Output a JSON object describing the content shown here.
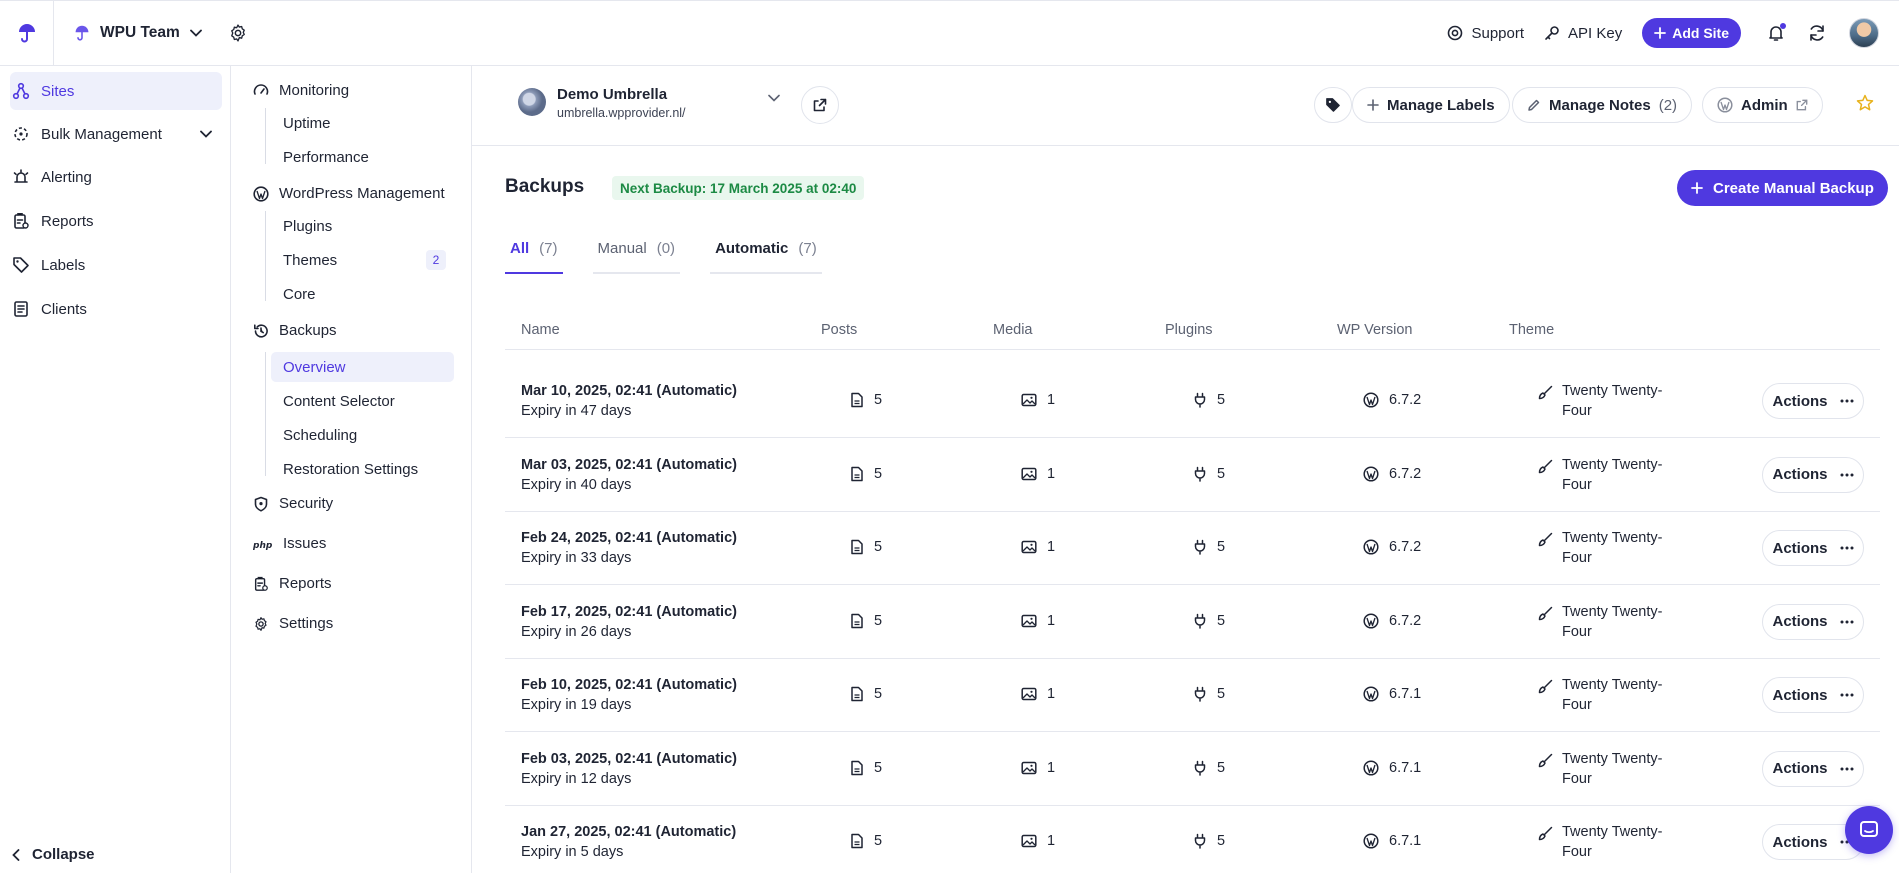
{
  "topbar": {
    "team_name": "WPU Team",
    "support": "Support",
    "api_key": "API Key",
    "add_site": "Add Site"
  },
  "sidebar": {
    "items": [
      {
        "label": "Sites",
        "icon": "sites-icon"
      },
      {
        "label": "Bulk Management",
        "icon": "bulk-icon"
      },
      {
        "label": "Alerting",
        "icon": "alert-icon"
      },
      {
        "label": "Reports",
        "icon": "reports-icon"
      },
      {
        "label": "Labels",
        "icon": "tag-icon"
      },
      {
        "label": "Clients",
        "icon": "clients-icon"
      }
    ],
    "collapse": "Collapse"
  },
  "subnav": {
    "monitoring": "Monitoring",
    "uptime": "Uptime",
    "performance": "Performance",
    "wp_management": "WordPress Management",
    "plugins": "Plugins",
    "themes": "Themes",
    "themes_badge": "2",
    "core": "Core",
    "backups": "Backups",
    "overview": "Overview",
    "content_selector": "Content Selector",
    "scheduling": "Scheduling",
    "restoration_settings": "Restoration Settings",
    "security": "Security",
    "issues": "Issues",
    "reports": "Reports",
    "settings": "Settings"
  },
  "site": {
    "name": "Demo Umbrella",
    "url": "umbrella.wpprovider.nl/",
    "manage_labels": "Manage Labels",
    "manage_notes": "Manage Notes",
    "notes_count": "(2)",
    "admin": "Admin"
  },
  "backups": {
    "title": "Backups",
    "next_backup": "Next Backup: 17 March 2025 at 02:40",
    "create_button": "Create Manual Backup",
    "tabs": [
      {
        "label": "All",
        "count": "(7)"
      },
      {
        "label": "Manual",
        "count": "(0)"
      },
      {
        "label": "Automatic",
        "count": "(7)"
      }
    ],
    "columns": [
      "Name",
      "Posts",
      "Media",
      "Plugins",
      "WP Version",
      "Theme"
    ],
    "actions_label": "Actions",
    "rows": [
      {
        "title": "Mar 10, 2025, 02:41 (Automatic)",
        "expiry": "Expiry in 47 days",
        "posts": "5",
        "media": "1",
        "plugins": "5",
        "wp": "6.7.2",
        "theme": "Twenty Twenty-Four"
      },
      {
        "title": "Mar 03, 2025, 02:41 (Automatic)",
        "expiry": "Expiry in 40 days",
        "posts": "5",
        "media": "1",
        "plugins": "5",
        "wp": "6.7.2",
        "theme": "Twenty Twenty-Four"
      },
      {
        "title": "Feb 24, 2025, 02:41 (Automatic)",
        "expiry": "Expiry in 33 days",
        "posts": "5",
        "media": "1",
        "plugins": "5",
        "wp": "6.7.2",
        "theme": "Twenty Twenty-Four"
      },
      {
        "title": "Feb 17, 2025, 02:41 (Automatic)",
        "expiry": "Expiry in 26 days",
        "posts": "5",
        "media": "1",
        "plugins": "5",
        "wp": "6.7.2",
        "theme": "Twenty Twenty-Four"
      },
      {
        "title": "Feb 10, 2025, 02:41 (Automatic)",
        "expiry": "Expiry in 19 days",
        "posts": "5",
        "media": "1",
        "plugins": "5",
        "wp": "6.7.1",
        "theme": "Twenty Twenty-Four"
      },
      {
        "title": "Feb 03, 2025, 02:41 (Automatic)",
        "expiry": "Expiry in 12 days",
        "posts": "5",
        "media": "1",
        "plugins": "5",
        "wp": "6.7.1",
        "theme": "Twenty Twenty-Four"
      },
      {
        "title": "Jan 27, 2025, 02:41 (Automatic)",
        "expiry": "Expiry in 5 days",
        "posts": "5",
        "media": "1",
        "plugins": "5",
        "wp": "6.7.1",
        "theme": "Twenty Twenty-Four"
      }
    ]
  },
  "colors": {
    "accent": "#4f39e0",
    "success_bg": "#e9f7ee",
    "success_text": "#1c8a44"
  }
}
